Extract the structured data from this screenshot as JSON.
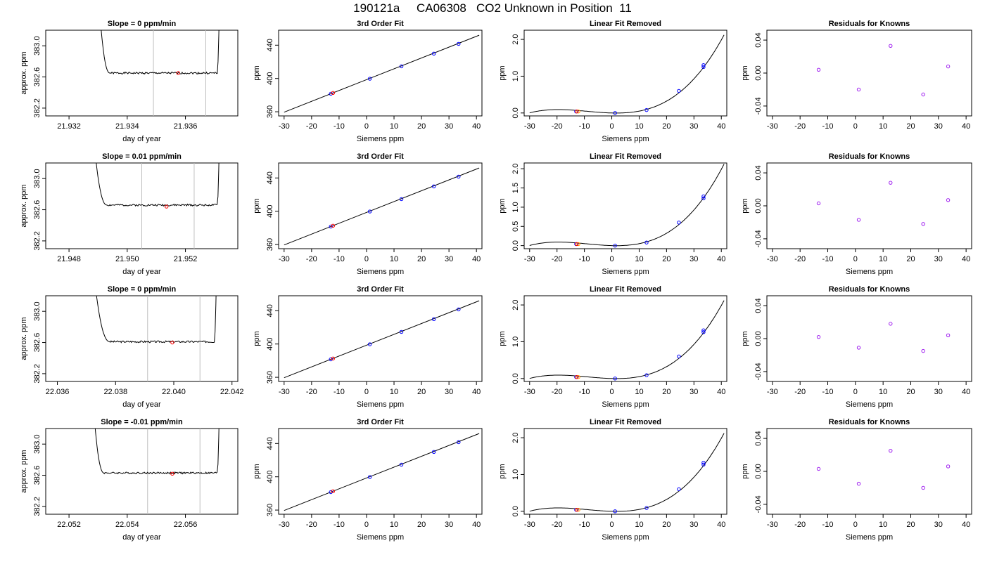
{
  "title": "190121a     CA06308   CO2 Unknown in Position  11",
  "colors": {
    "trace": "#000000",
    "marker_gray": "#bebebe",
    "known_blue": "#0000ff",
    "resid_purple": "#a020f0",
    "unknown_red": "#ff0000",
    "unknown_orange": "#ffa500"
  },
  "chart_data": [
    {
      "type": "line",
      "title": "Slope =  0  ppm/min",
      "xlabel": "day of year",
      "ylabel": "approx. ppm",
      "xlim": [
        21.9312,
        21.9378
      ],
      "ylim": [
        382.1,
        383.2
      ],
      "xticks": [
        21.932,
        21.934,
        21.936
      ],
      "xtick_labels": [
        "21.932",
        "21.934",
        "21.936"
      ],
      "yticks": [
        382.2,
        382.6,
        383.0
      ],
      "ytick_labels": [
        "382.2",
        "382.6",
        "383.0"
      ],
      "vlines": [
        21.9349,
        21.9367
      ],
      "trace": {
        "start": 21.933,
        "end": 21.9372,
        "level": 382.65,
        "flat_from": 21.9334,
        "flat_to": 21.9371,
        "amplitude": 0.012,
        "seed": 1
      },
      "mark": {
        "x": 21.93575,
        "y": 382.65
      }
    },
    {
      "type": "scatter",
      "title": "3rd Order Fit",
      "xlabel": "Siemens ppm",
      "ylabel": "ppm",
      "xlim": [
        -32,
        42
      ],
      "ylim": [
        355,
        458
      ],
      "xticks": [
        -30,
        -20,
        -10,
        0,
        10,
        20,
        30,
        40
      ],
      "xtick_labels": [
        "-30",
        "-20",
        "-10",
        "0",
        "10",
        "20",
        "30",
        "40"
      ],
      "yticks": [
        360,
        400,
        440
      ],
      "ytick_labels": [
        "360",
        "400",
        "440"
      ],
      "fit": {
        "x1": -30,
        "y1": 359.5,
        "x2": 41,
        "y2": 452
      },
      "knowns": [
        [
          -13.0,
          381.6
        ],
        [
          1.2,
          399.7
        ],
        [
          12.7,
          414.6
        ],
        [
          24.5,
          429.9
        ],
        [
          33.5,
          441.6
        ]
      ],
      "unknown": [
        -12.2,
        382.6
      ]
    },
    {
      "type": "scatter",
      "title": "Linear Fit Removed",
      "xlabel": "Siemens ppm",
      "ylabel": "ppm",
      "xlim": [
        -32,
        42
      ],
      "ylim": [
        -0.08,
        2.25
      ],
      "xticks": [
        -30,
        -20,
        -10,
        0,
        10,
        20,
        30,
        40
      ],
      "xtick_labels": [
        "-30",
        "-20",
        "-10",
        "0",
        "10",
        "20",
        "30",
        "40"
      ],
      "yticks": [
        0,
        1,
        2
      ],
      "ytick_labels": [
        "0.0",
        "1.0",
        "2.0"
      ],
      "curve": {
        "a": 4.17e-05,
        "b": 0.0,
        "c": -0.00186,
        "d": 0.0,
        "x_from": -30,
        "x_to": 41
      },
      "knowns": [
        [
          -13.0,
          0.04
        ],
        [
          1.2,
          0.0
        ],
        [
          12.7,
          0.08
        ],
        [
          24.5,
          0.6
        ],
        [
          33.5,
          1.25
        ],
        [
          33.5,
          1.3
        ]
      ],
      "unknown": [
        -12.2,
        0.04
      ]
    },
    {
      "type": "scatter",
      "title": "Residuals for Knowns",
      "xlabel": "",
      "ylabel": "ppm",
      "xlim": [
        -32,
        42
      ],
      "ylim": [
        -0.052,
        0.052
      ],
      "xticks": [
        -30,
        -20,
        -10,
        0,
        10,
        20,
        30,
        40
      ],
      "xtick_labels": [
        "-30",
        "-20",
        "-10",
        "0",
        "10",
        "20",
        "30",
        "40"
      ],
      "yticks": [
        -0.04,
        0,
        0.04
      ],
      "ytick_labels": [
        "-0.04",
        "0.00",
        "0.04"
      ],
      "points": [
        [
          -13.3,
          0.004
        ],
        [
          1.2,
          -0.02
        ],
        [
          12.7,
          0.033
        ],
        [
          24.5,
          -0.026
        ],
        [
          33.5,
          0.008
        ]
      ]
    },
    {
      "type": "line",
      "title": "Slope =  0.01  ppm/min",
      "xlabel": "day of year",
      "ylabel": "approx. ppm",
      "xlim": [
        21.9472,
        21.9538
      ],
      "ylim": [
        382.1,
        383.2
      ],
      "xticks": [
        21.948,
        21.95,
        21.952
      ],
      "xtick_labels": [
        "21.948",
        "21.950",
        "21.952"
      ],
      "yticks": [
        382.2,
        382.6,
        383.0
      ],
      "ytick_labels": [
        "382.2",
        "382.6",
        "383.0"
      ],
      "vlines": [
        21.9505,
        21.9523
      ],
      "trace": {
        "start": 21.9488,
        "end": 21.9532,
        "level": 382.66,
        "flat_from": 21.9493,
        "flat_to": 21.9531,
        "amplitude": 0.012,
        "seed": 2
      },
      "mark": {
        "x": 21.95135,
        "y": 382.64
      }
    },
    {
      "type": "scatter",
      "title": "3rd Order Fit",
      "xlabel": "Siemens ppm",
      "ylabel": "ppm",
      "xlim": [
        -32,
        42
      ],
      "ylim": [
        355,
        458
      ],
      "xticks": [
        -30,
        -20,
        -10,
        0,
        10,
        20,
        30,
        40
      ],
      "xtick_labels": [
        "-30",
        "-20",
        "-10",
        "0",
        "10",
        "20",
        "30",
        "40"
      ],
      "yticks": [
        360,
        400,
        440
      ],
      "ytick_labels": [
        "360",
        "400",
        "440"
      ],
      "fit": {
        "x1": -30,
        "y1": 359.5,
        "x2": 41,
        "y2": 452
      },
      "knowns": [
        [
          -13.0,
          381.6
        ],
        [
          1.2,
          399.7
        ],
        [
          12.7,
          414.6
        ],
        [
          24.5,
          429.9
        ],
        [
          33.5,
          441.6
        ]
      ],
      "unknown": [
        -12.2,
        382.6
      ]
    },
    {
      "type": "scatter",
      "title": "Linear Fit Removed",
      "xlabel": "Siemens ppm",
      "ylabel": "ppm",
      "xlim": [
        -32,
        42
      ],
      "ylim": [
        -0.08,
        2.15
      ],
      "xticks": [
        -30,
        -20,
        -10,
        0,
        10,
        20,
        30,
        40
      ],
      "xtick_labels": [
        "-30",
        "-20",
        "-10",
        "0",
        "10",
        "20",
        "30",
        "40"
      ],
      "yticks": [
        0,
        0.5,
        1,
        1.5,
        2
      ],
      "ytick_labels": [
        "0.0",
        "0.5",
        "1.0",
        "1.5",
        "2.0"
      ],
      "curve": {
        "a": 4.17e-05,
        "b": 0.0,
        "c": -0.00186,
        "d": 0.0,
        "x_from": -30,
        "x_to": 41
      },
      "knowns": [
        [
          -13.0,
          0.04
        ],
        [
          1.2,
          0.0
        ],
        [
          12.7,
          0.08
        ],
        [
          24.5,
          0.6
        ],
        [
          33.5,
          1.23
        ],
        [
          33.5,
          1.28
        ]
      ],
      "unknown": [
        -12.2,
        0.04
      ]
    },
    {
      "type": "scatter",
      "title": "Residuals for Knowns",
      "xlabel": "Siemens ppm",
      "ylabel": "ppm",
      "xlim": [
        -32,
        42
      ],
      "ylim": [
        -0.052,
        0.052
      ],
      "xticks": [
        -30,
        -20,
        -10,
        0,
        10,
        20,
        30,
        40
      ],
      "xtick_labels": [
        "-30",
        "-20",
        "-10",
        "0",
        "10",
        "20",
        "30",
        "40"
      ],
      "yticks": [
        -0.04,
        0,
        0.04
      ],
      "ytick_labels": [
        "-0.04",
        "0.00",
        "0.04"
      ],
      "points": [
        [
          -13.3,
          0.003
        ],
        [
          1.2,
          -0.017
        ],
        [
          12.7,
          0.028
        ],
        [
          24.5,
          -0.022
        ],
        [
          33.5,
          0.007
        ]
      ]
    },
    {
      "type": "line",
      "title": "Slope =  0  ppm/min",
      "xlabel": "day of year",
      "ylabel": "approx. ppm",
      "xlim": [
        22.0356,
        22.0422
      ],
      "ylim": [
        382.1,
        383.2
      ],
      "xticks": [
        22.036,
        22.038,
        22.04,
        22.042
      ],
      "xtick_labels": [
        "22.036",
        "22.038",
        "22.040",
        "22.042"
      ],
      "yticks": [
        382.2,
        382.6,
        383.0
      ],
      "ytick_labels": [
        "382.2",
        "382.6",
        "383.0"
      ],
      "vlines": [
        22.0391,
        22.0409
      ],
      "trace": {
        "start": 22.0372,
        "end": 22.0415,
        "level": 382.61,
        "flat_from": 22.0378,
        "flat_to": 22.0414,
        "amplitude": 0.012,
        "seed": 3
      },
      "mark": {
        "x": 22.03995,
        "y": 382.6
      }
    },
    {
      "type": "scatter",
      "title": "3rd Order Fit",
      "xlabel": "Siemens ppm",
      "ylabel": "ppm",
      "xlim": [
        -32,
        42
      ],
      "ylim": [
        355,
        458
      ],
      "xticks": [
        -30,
        -20,
        -10,
        0,
        10,
        20,
        30,
        40
      ],
      "xtick_labels": [
        "-30",
        "-20",
        "-10",
        "0",
        "10",
        "20",
        "30",
        "40"
      ],
      "yticks": [
        360,
        400,
        440
      ],
      "ytick_labels": [
        "360",
        "400",
        "440"
      ],
      "fit": {
        "x1": -30,
        "y1": 359.5,
        "x2": 41,
        "y2": 452
      },
      "knowns": [
        [
          -13.0,
          381.6
        ],
        [
          1.2,
          399.7
        ],
        [
          12.7,
          414.6
        ],
        [
          24.5,
          429.9
        ],
        [
          33.5,
          441.6
        ]
      ],
      "unknown": [
        -12.2,
        382.6
      ]
    },
    {
      "type": "scatter",
      "title": "Linear Fit Removed",
      "xlabel": "Siemens ppm",
      "ylabel": "ppm",
      "xlim": [
        -32,
        42
      ],
      "ylim": [
        -0.08,
        2.25
      ],
      "xticks": [
        -30,
        -20,
        -10,
        0,
        10,
        20,
        30,
        40
      ],
      "xtick_labels": [
        "-30",
        "-20",
        "-10",
        "0",
        "10",
        "20",
        "30",
        "40"
      ],
      "yticks": [
        0,
        1,
        2
      ],
      "ytick_labels": [
        "0.0",
        "1.0",
        "2.0"
      ],
      "curve": {
        "a": 4.17e-05,
        "b": 0.0,
        "c": -0.00186,
        "d": 0.0,
        "x_from": -30,
        "x_to": 41
      },
      "knowns": [
        [
          -13.0,
          0.04
        ],
        [
          1.2,
          0.0
        ],
        [
          12.7,
          0.09
        ],
        [
          24.5,
          0.6
        ],
        [
          33.5,
          1.26
        ],
        [
          33.5,
          1.31
        ]
      ],
      "unknown": [
        -12.2,
        0.04
      ]
    },
    {
      "type": "scatter",
      "title": "Residuals for Knowns",
      "xlabel": "Siemens ppm",
      "ylabel": "ppm",
      "xlim": [
        -32,
        42
      ],
      "ylim": [
        -0.052,
        0.052
      ],
      "xticks": [
        -30,
        -20,
        -10,
        0,
        10,
        20,
        30,
        40
      ],
      "xtick_labels": [
        "-30",
        "-20",
        "-10",
        "0",
        "10",
        "20",
        "30",
        "40"
      ],
      "yticks": [
        -0.04,
        0,
        0.04
      ],
      "ytick_labels": [
        "-0.04",
        "0.00",
        "0.04"
      ],
      "points": [
        [
          -13.3,
          0.002
        ],
        [
          1.2,
          -0.011
        ],
        [
          12.7,
          0.018
        ],
        [
          24.5,
          -0.015
        ],
        [
          33.5,
          0.004
        ]
      ]
    },
    {
      "type": "line",
      "title": "Slope =  -0.01  ppm/min",
      "xlabel": "day of year",
      "ylabel": "approx. ppm",
      "xlim": [
        22.0512,
        22.0578
      ],
      "ylim": [
        382.1,
        383.2
      ],
      "xticks": [
        22.052,
        22.054,
        22.056
      ],
      "xtick_labels": [
        "22.052",
        "22.054",
        "22.056"
      ],
      "yticks": [
        382.2,
        382.6,
        383.0
      ],
      "ytick_labels": [
        "382.2",
        "382.6",
        "383.0"
      ],
      "vlines": [
        22.0547,
        22.0565
      ],
      "trace": {
        "start": 22.0528,
        "end": 22.0572,
        "level": 382.63,
        "flat_from": 22.0532,
        "flat_to": 22.0571,
        "amplitude": 0.012,
        "seed": 4
      },
      "mark": {
        "x": 22.05555,
        "y": 382.62
      }
    },
    {
      "type": "scatter",
      "title": "3rd Order Fit",
      "xlabel": "Siemens ppm",
      "ylabel": "ppm",
      "xlim": [
        -32,
        42
      ],
      "ylim": [
        355,
        458
      ],
      "xticks": [
        -30,
        -20,
        -10,
        0,
        10,
        20,
        30,
        40
      ],
      "xtick_labels": [
        "-30",
        "-20",
        "-10",
        "0",
        "10",
        "20",
        "30",
        "40"
      ],
      "yticks": [
        360,
        400,
        440
      ],
      "ytick_labels": [
        "360",
        "400",
        "440"
      ],
      "fit": {
        "x1": -30,
        "y1": 359.5,
        "x2": 41,
        "y2": 452
      },
      "knowns": [
        [
          -13.0,
          381.6
        ],
        [
          1.2,
          399.7
        ],
        [
          12.7,
          414.6
        ],
        [
          24.5,
          429.9
        ],
        [
          33.5,
          441.6
        ]
      ],
      "unknown": [
        -12.2,
        382.6
      ]
    },
    {
      "type": "scatter",
      "title": "Linear Fit Removed",
      "xlabel": "Siemens ppm",
      "ylabel": "ppm",
      "xlim": [
        -32,
        42
      ],
      "ylim": [
        -0.08,
        2.25
      ],
      "xticks": [
        -30,
        -20,
        -10,
        0,
        10,
        20,
        30,
        40
      ],
      "xtick_labels": [
        "-30",
        "-20",
        "-10",
        "0",
        "10",
        "20",
        "30",
        "40"
      ],
      "yticks": [
        0,
        1,
        2
      ],
      "ytick_labels": [
        "0.0",
        "1.0",
        "2.0"
      ],
      "curve": {
        "a": 4.17e-05,
        "b": 0.0,
        "c": -0.00186,
        "d": 0.0,
        "x_from": -30,
        "x_to": 41
      },
      "knowns": [
        [
          -13.0,
          0.04
        ],
        [
          1.2,
          0.0
        ],
        [
          12.7,
          0.09
        ],
        [
          24.5,
          0.6
        ],
        [
          33.5,
          1.27
        ],
        [
          33.5,
          1.32
        ]
      ],
      "unknown": [
        -12.2,
        0.04
      ]
    },
    {
      "type": "scatter",
      "title": "Residuals for Knowns",
      "xlabel": "Siemens ppm",
      "ylabel": "ppm",
      "xlim": [
        -32,
        42
      ],
      "ylim": [
        -0.052,
        0.052
      ],
      "xticks": [
        -30,
        -20,
        -10,
        0,
        10,
        20,
        30,
        40
      ],
      "xtick_labels": [
        "-30",
        "-20",
        "-10",
        "0",
        "10",
        "20",
        "30",
        "40"
      ],
      "yticks": [
        -0.04,
        0,
        0.04
      ],
      "ytick_labels": [
        "-0.04",
        "0.00",
        "0.04"
      ],
      "points": [
        [
          -13.3,
          0.003
        ],
        [
          1.2,
          -0.015
        ],
        [
          12.7,
          0.025
        ],
        [
          24.5,
          -0.02
        ],
        [
          33.5,
          0.006
        ]
      ]
    }
  ]
}
